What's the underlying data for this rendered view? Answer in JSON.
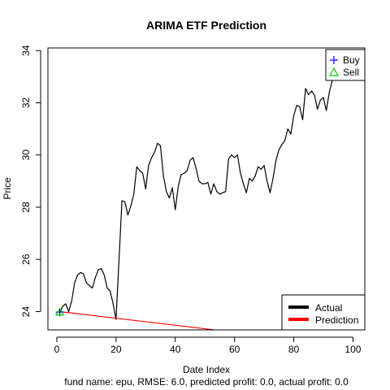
{
  "chart_data": {
    "type": "line",
    "title": "ARIMA ETF Prediction",
    "xlabel": "Date Index",
    "ylabel": "Price",
    "caption": "fund name: epu, RMSE: 6.0, predicted profit: 0.0, actual profit: 0.0",
    "xlim": [
      -3,
      104
    ],
    "ylim": [
      23.3,
      34.1
    ],
    "x_ticks": [
      0,
      20,
      40,
      60,
      80,
      100
    ],
    "x_tick_labels": [
      "0",
      "20",
      "40",
      "60",
      "80",
      "100"
    ],
    "y_ticks": [
      24,
      26,
      28,
      30,
      32,
      34
    ],
    "y_tick_labels": [
      "24",
      "26",
      "28",
      "30",
      "32",
      "34"
    ],
    "grid": false,
    "series": [
      {
        "name": "Actual",
        "color": "#000000",
        "x": [
          1,
          2,
          3,
          4,
          5,
          6,
          7,
          8,
          9,
          10,
          11,
          12,
          13,
          14,
          15,
          16,
          17,
          18,
          19,
          20,
          21,
          22,
          23,
          24,
          25,
          26,
          27,
          28,
          29,
          30,
          31,
          32,
          33,
          34,
          35,
          36,
          37,
          38,
          39,
          40,
          41,
          42,
          43,
          44,
          45,
          46,
          47,
          48,
          49,
          50,
          51,
          52,
          53,
          54,
          55,
          56,
          57,
          58,
          59,
          60,
          61,
          62,
          63,
          64,
          65,
          66,
          67,
          68,
          69,
          70,
          71,
          72,
          73,
          74,
          75,
          76,
          77,
          78,
          79,
          80,
          81,
          82,
          83,
          84,
          85,
          86,
          87,
          88,
          89,
          90,
          91,
          92,
          93,
          94,
          95,
          96,
          97,
          98
        ],
        "values": [
          23.95,
          24.2,
          24.3,
          24.0,
          24.4,
          25.1,
          25.4,
          25.5,
          25.45,
          25.1,
          25.0,
          24.9,
          25.3,
          25.6,
          25.65,
          25.4,
          24.9,
          24.8,
          24.3,
          23.7,
          26.0,
          28.25,
          28.2,
          27.7,
          28.05,
          28.5,
          29.55,
          29.4,
          29.3,
          28.7,
          29.6,
          29.9,
          30.1,
          30.45,
          30.35,
          29.2,
          28.6,
          28.35,
          28.75,
          27.9,
          28.8,
          29.25,
          29.3,
          29.4,
          29.8,
          29.9,
          29.5,
          29.0,
          28.9,
          28.9,
          28.95,
          28.5,
          28.9,
          28.6,
          28.5,
          28.55,
          28.6,
          29.85,
          30.0,
          29.9,
          30.0,
          29.3,
          28.9,
          28.55,
          29.1,
          29.0,
          29.2,
          29.55,
          29.45,
          29.6,
          29.0,
          28.55,
          29.1,
          29.8,
          30.2,
          30.4,
          30.55,
          31.0,
          30.8,
          31.5,
          31.9,
          31.85,
          31.35,
          32.55,
          32.3,
          32.45,
          32.3,
          31.75,
          32.1,
          32.2,
          31.7,
          32.4,
          32.85,
          33.1,
          33.5,
          34.0,
          33.6,
          33.9
        ]
      },
      {
        "name": "Prediction",
        "color": "#ff0000",
        "x": [
          1,
          98
        ],
        "values": [
          24.0,
          22.7
        ]
      }
    ],
    "markers": [
      {
        "name": "Buy",
        "symbol": "+",
        "color": "#0000ff",
        "x": 1,
        "y": 23.98
      },
      {
        "name": "Sell",
        "symbol": "triangle",
        "color": "#00cd00",
        "x": 1,
        "y": 23.98
      }
    ],
    "legends": {
      "top_right": [
        "Buy",
        "Sell"
      ],
      "bottom_right": [
        "Actual",
        "Prediction"
      ]
    }
  }
}
